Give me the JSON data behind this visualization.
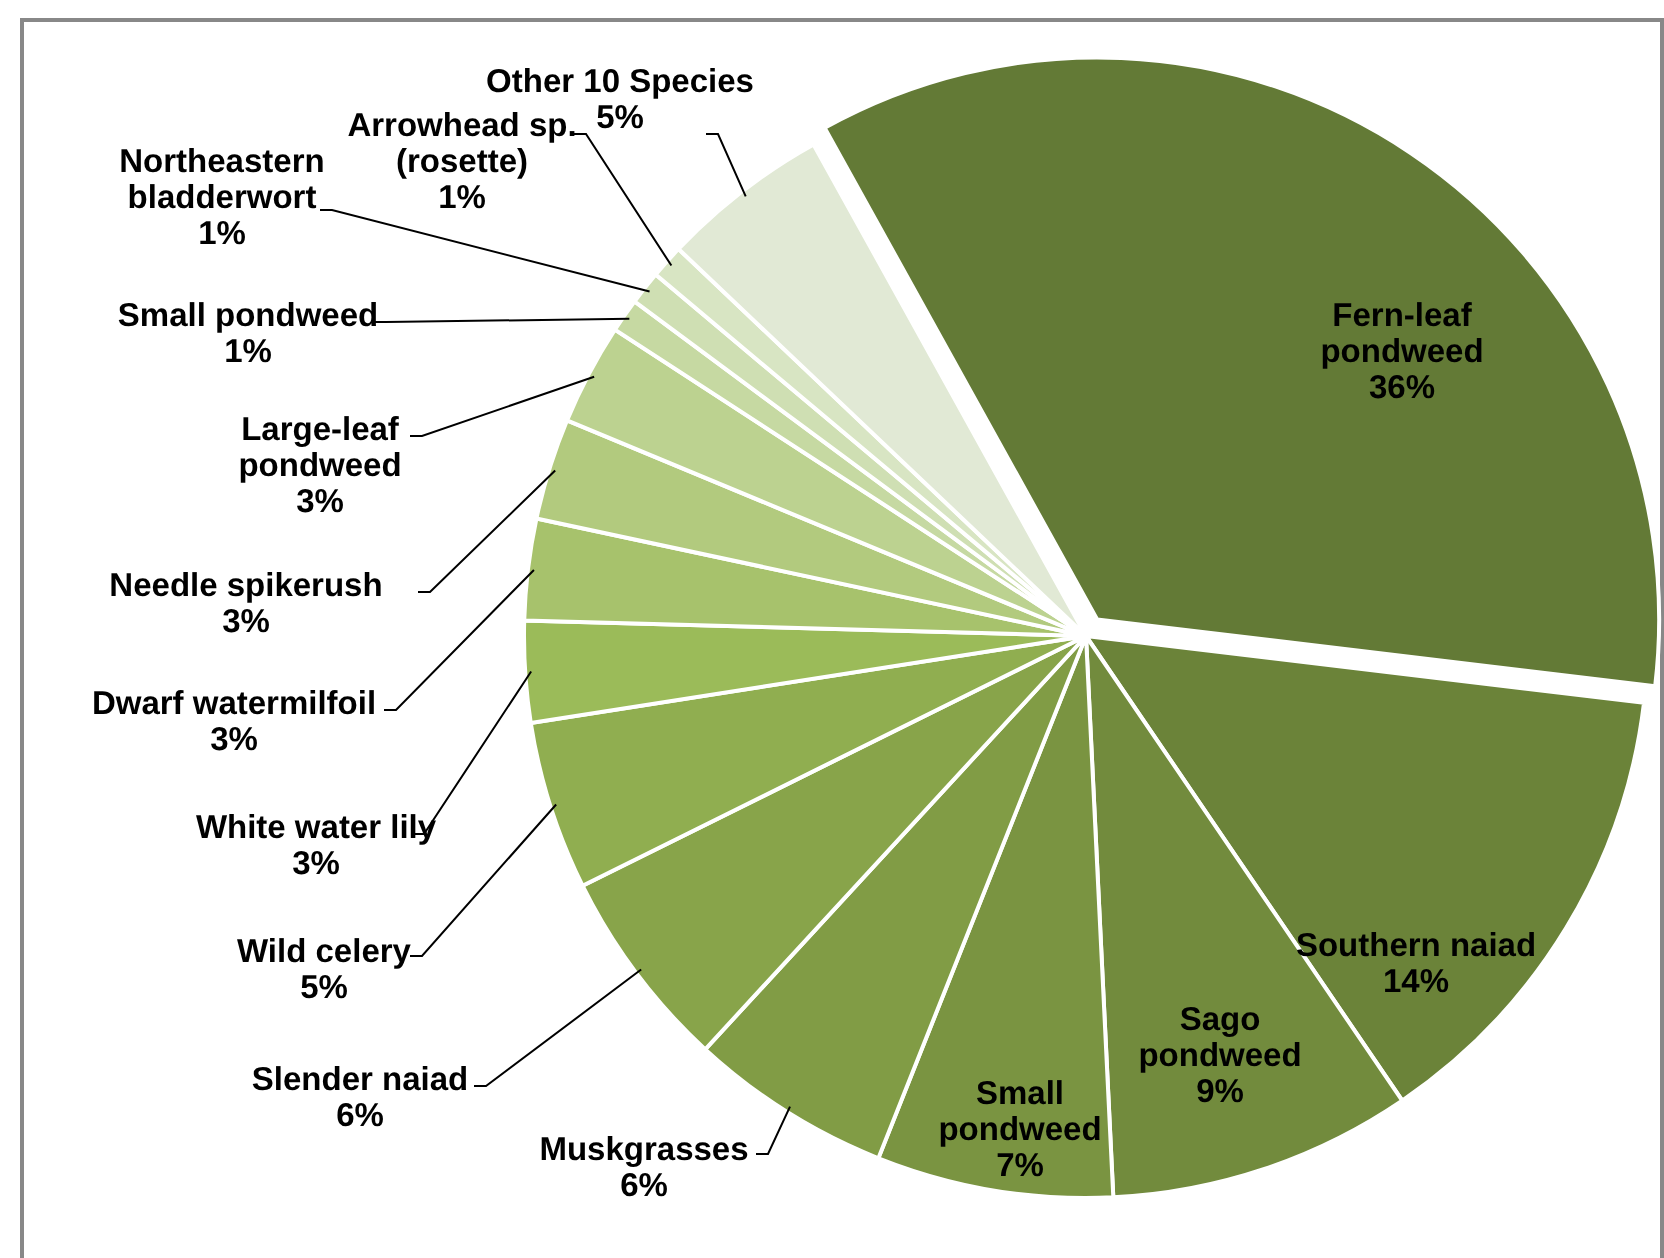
{
  "chart_data": {
    "type": "pie",
    "categories": [
      "Fern-leaf pondweed",
      "Southern naiad",
      "Sago pondweed",
      "Small pondweed",
      "Muskgrasses",
      "Slender naiad",
      "Wild celery",
      "White water lily",
      "Dwarf watermilfoil",
      "Needle spikerush",
      "Large-leaf pondweed",
      "Small pondweed",
      "Northeastern bladderwort",
      "Arrowhead sp. (rosette)",
      "Other 10 Species"
    ],
    "values": [
      36,
      14,
      9,
      7,
      6,
      6,
      5,
      3,
      3,
      3,
      3,
      1,
      1,
      1,
      5
    ],
    "value_labels": [
      "36%",
      "14%",
      "9%",
      "7%",
      "6%",
      "6%",
      "5%",
      "3%",
      "3%",
      "3%",
      "3%",
      "1%",
      "1%",
      "1%",
      "5%"
    ],
    "colors": [
      "#637a36",
      "#6b8339",
      "#728b3d",
      "#7a9441",
      "#819c45",
      "#88a44a",
      "#90ae50",
      "#9bbb59",
      "#a7c26c",
      "#b2ca7e",
      "#bcd290",
      "#c6d9a2",
      "#cfdfb3",
      "#d8e5c3",
      "#e1e9d5"
    ]
  }
}
